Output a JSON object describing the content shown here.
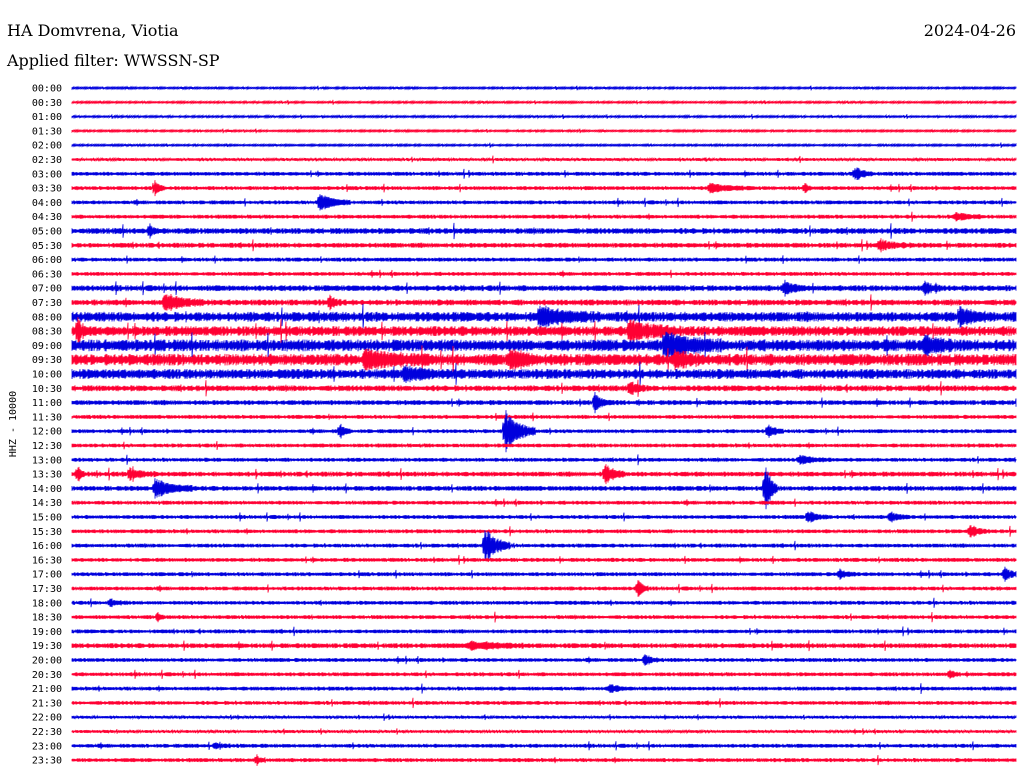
{
  "header": {
    "station": "HA Domvrena, Viotia",
    "date": "2024-04-26",
    "filter": "Applied filter: WWSSN-SP"
  },
  "chart_data": {
    "type": "line",
    "ylabel": "HHZ - 10000",
    "rows": [
      "00:00",
      "00:30",
      "01:00",
      "01:30",
      "02:00",
      "02:30",
      "03:00",
      "03:30",
      "04:00",
      "04:30",
      "05:00",
      "05:30",
      "06:00",
      "06:30",
      "07:00",
      "07:30",
      "08:00",
      "08:30",
      "09:00",
      "09:30",
      "10:00",
      "10:30",
      "11:00",
      "11:30",
      "12:00",
      "12:30",
      "13:00",
      "13:30",
      "14:00",
      "14:30",
      "15:00",
      "15:30",
      "16:00",
      "16:30",
      "17:00",
      "17:30",
      "18:00",
      "18:30",
      "19:00",
      "19:30",
      "20:00",
      "20:30",
      "21:00",
      "21:30",
      "22:00",
      "22:30",
      "23:00",
      "23:30"
    ],
    "colors": [
      "#0000dd",
      "#ff0033"
    ],
    "noise": [
      1,
      1,
      1,
      1,
      1,
      1.5,
      2,
      2,
      2,
      2,
      3,
      2.5,
      2,
      2,
      3,
      3,
      5,
      5,
      6,
      6,
      5,
      3,
      2.5,
      2,
      2,
      2,
      2,
      2.5,
      2.5,
      2,
      2,
      2,
      2,
      2,
      2,
      2,
      2,
      2,
      2,
      2.5,
      2,
      2,
      2,
      2,
      1.5,
      1.5,
      2,
      2
    ],
    "events": [
      {
        "row": 24,
        "x": 505,
        "amp": 22,
        "len": 30
      },
      {
        "row": 28,
        "x": 765,
        "amp": 28,
        "len": 12
      },
      {
        "row": 32,
        "x": 485,
        "amp": 18,
        "len": 25
      },
      {
        "row": 27,
        "x": 605,
        "amp": 10,
        "len": 20
      },
      {
        "row": 27,
        "x": 78,
        "amp": 8,
        "len": 6
      },
      {
        "row": 28,
        "x": 155,
        "amp": 9,
        "len": 40
      },
      {
        "row": 27,
        "x": 130,
        "amp": 6,
        "len": 25
      },
      {
        "row": 34,
        "x": 1005,
        "amp": 7,
        "len": 15
      },
      {
        "row": 34,
        "x": 840,
        "amp": 5,
        "len": 15
      },
      {
        "row": 35,
        "x": 638,
        "amp": 9,
        "len": 10
      },
      {
        "row": 40,
        "x": 645,
        "amp": 6,
        "len": 12
      },
      {
        "row": 22,
        "x": 595,
        "amp": 9,
        "len": 15
      },
      {
        "row": 24,
        "x": 340,
        "amp": 6,
        "len": 12
      },
      {
        "row": 24,
        "x": 768,
        "amp": 7,
        "len": 15
      },
      {
        "row": 30,
        "x": 808,
        "amp": 6,
        "len": 20
      },
      {
        "row": 30,
        "x": 890,
        "amp": 5,
        "len": 20
      },
      {
        "row": 31,
        "x": 970,
        "amp": 6,
        "len": 20
      },
      {
        "row": 8,
        "x": 320,
        "amp": 9,
        "len": 30
      },
      {
        "row": 7,
        "x": 155,
        "amp": 7,
        "len": 10
      },
      {
        "row": 7,
        "x": 710,
        "amp": 5,
        "len": 40
      },
      {
        "row": 7,
        "x": 805,
        "amp": 5,
        "len": 8
      },
      {
        "row": 6,
        "x": 855,
        "amp": 6,
        "len": 20
      },
      {
        "row": 14,
        "x": 785,
        "amp": 6,
        "len": 20
      },
      {
        "row": 14,
        "x": 925,
        "amp": 6,
        "len": 15
      },
      {
        "row": 15,
        "x": 165,
        "amp": 8,
        "len": 40
      },
      {
        "row": 15,
        "x": 330,
        "amp": 6,
        "len": 12
      },
      {
        "row": 16,
        "x": 540,
        "amp": 8,
        "len": 60
      },
      {
        "row": 16,
        "x": 960,
        "amp": 8,
        "len": 30
      },
      {
        "row": 17,
        "x": 630,
        "amp": 9,
        "len": 50
      },
      {
        "row": 17,
        "x": 78,
        "amp": 12,
        "len": 8
      },
      {
        "row": 18,
        "x": 665,
        "amp": 11,
        "len": 60
      },
      {
        "row": 18,
        "x": 925,
        "amp": 8,
        "len": 30
      },
      {
        "row": 19,
        "x": 365,
        "amp": 8,
        "len": 60
      },
      {
        "row": 19,
        "x": 510,
        "amp": 8,
        "len": 30
      },
      {
        "row": 19,
        "x": 675,
        "amp": 8,
        "len": 25
      },
      {
        "row": 20,
        "x": 405,
        "amp": 7,
        "len": 30
      },
      {
        "row": 21,
        "x": 630,
        "amp": 6,
        "len": 15
      },
      {
        "row": 26,
        "x": 800,
        "amp": 4,
        "len": 30
      },
      {
        "row": 36,
        "x": 110,
        "amp": 3,
        "len": 20
      },
      {
        "row": 37,
        "x": 158,
        "amp": 5,
        "len": 6
      },
      {
        "row": 39,
        "x": 470,
        "amp": 4,
        "len": 60
      },
      {
        "row": 41,
        "x": 950,
        "amp": 4,
        "len": 10
      },
      {
        "row": 42,
        "x": 610,
        "amp": 4,
        "len": 20
      },
      {
        "row": 46,
        "x": 215,
        "amp": 3,
        "len": 15
      },
      {
        "row": 47,
        "x": 257,
        "amp": 5,
        "len": 6
      },
      {
        "row": 10,
        "x": 150,
        "amp": 5,
        "len": 10
      },
      {
        "row": 11,
        "x": 880,
        "amp": 5,
        "len": 30
      },
      {
        "row": 9,
        "x": 955,
        "amp": 4,
        "len": 30
      }
    ]
  }
}
